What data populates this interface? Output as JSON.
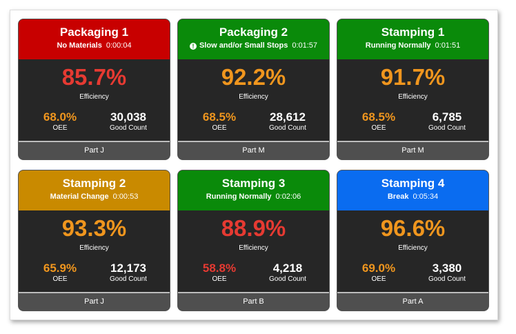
{
  "colors": {
    "header_red": "#c80000",
    "header_green": "#0a8a0a",
    "header_gold": "#c98a00",
    "header_blue": "#0a6cf0",
    "value_orange": "#f0961e",
    "value_red": "#e63a32"
  },
  "labels": {
    "efficiency": "Efficiency",
    "oee": "OEE",
    "good_count": "Good Count"
  },
  "cards": [
    {
      "title": "Packaging 1",
      "status": "No Materials",
      "time": "0:00:04",
      "efficiency": "85.7%",
      "oee": "68.0%",
      "good_count": "30,038",
      "part": "Part J",
      "header_color": "#c80000",
      "efficiency_color": "#e63a32",
      "oee_color": "#f0961e",
      "status_icon": "none"
    },
    {
      "title": "Packaging 2",
      "status": "Slow and/or Small Stops",
      "time": "0:01:57",
      "efficiency": "92.2%",
      "oee": "68.5%",
      "good_count": "28,612",
      "part": "Part M",
      "header_color": "#0a8a0a",
      "efficiency_color": "#f0961e",
      "oee_color": "#f0961e",
      "status_icon": "exclamation-circle-icon"
    },
    {
      "title": "Stamping 1",
      "status": "Running Normally",
      "time": "0:01:51",
      "efficiency": "91.7%",
      "oee": "68.5%",
      "good_count": "6,785",
      "part": "Part M",
      "header_color": "#0a8a0a",
      "efficiency_color": "#f0961e",
      "oee_color": "#f0961e",
      "status_icon": "none"
    },
    {
      "title": "Stamping 2",
      "status": "Material Change",
      "time": "0:00:53",
      "efficiency": "93.3%",
      "oee": "65.9%",
      "good_count": "12,173",
      "part": "Part J",
      "header_color": "#c98a00",
      "efficiency_color": "#f0961e",
      "oee_color": "#f0961e",
      "status_icon": "none"
    },
    {
      "title": "Stamping 3",
      "status": "Running Normally",
      "time": "0:02:06",
      "efficiency": "88.9%",
      "oee": "58.8%",
      "good_count": "4,218",
      "part": "Part B",
      "header_color": "#0a8a0a",
      "efficiency_color": "#e63a32",
      "oee_color": "#e63a32",
      "status_icon": "none"
    },
    {
      "title": "Stamping 4",
      "status": "Break",
      "time": "0:05:34",
      "efficiency": "96.6%",
      "oee": "69.0%",
      "good_count": "3,380",
      "part": "Part A",
      "header_color": "#0a6cf0",
      "efficiency_color": "#f0961e",
      "oee_color": "#f0961e",
      "status_icon": "none"
    }
  ]
}
